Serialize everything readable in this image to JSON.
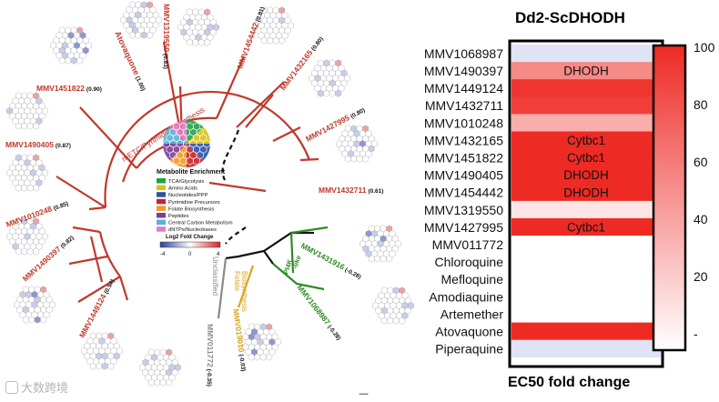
{
  "heatmap": {
    "title": "Dd2-ScDHODH",
    "footer": "EC50 fold change",
    "rows": [
      {
        "compound": "MMV1068987",
        "value": 8,
        "target": ""
      },
      {
        "compound": "MMV1490397",
        "value": 55,
        "target": "DHODH"
      },
      {
        "compound": "MMV1449124",
        "value": 95,
        "target": ""
      },
      {
        "compound": "MMV1432711",
        "value": 90,
        "target": ""
      },
      {
        "compound": "MMV1010248",
        "value": 38,
        "target": ""
      },
      {
        "compound": "MMV1432165",
        "value": 100,
        "target": "Cytbc1"
      },
      {
        "compound": "MMV1451822",
        "value": 100,
        "target": "Cytbc1"
      },
      {
        "compound": "MMV1490405",
        "value": 100,
        "target": "DHODH"
      },
      {
        "compound": "MMV1454442",
        "value": 100,
        "target": "DHODH"
      },
      {
        "compound": "MMV1319550",
        "value": 12,
        "target": ""
      },
      {
        "compound": "MMV1427995",
        "value": 100,
        "target": "Cytbc1"
      },
      {
        "compound": "MMV011772",
        "value": 0,
        "target": ""
      },
      {
        "compound": "Chloroquine",
        "value": 0,
        "target": ""
      },
      {
        "compound": "Mefloquine",
        "value": 0,
        "target": ""
      },
      {
        "compound": "Amodiaquine",
        "value": 0,
        "target": ""
      },
      {
        "compound": "Artemether",
        "value": 0,
        "target": ""
      },
      {
        "compound": "Atovaquone",
        "value": 100,
        "target": ""
      },
      {
        "compound": "Piperaquine",
        "value": 8,
        "target": ""
      }
    ],
    "colorbar": {
      "ticks": [
        "100",
        "80",
        "60",
        "40",
        "20",
        "-"
      ],
      "min": 0,
      "max": 100
    }
  },
  "tree": {
    "clade_mietc": "mETC/Pyrimidine Synthesis",
    "clade_pi4k": "PI4K",
    "clade_pi4k_sub": "-like",
    "clade_folate_1": "Folate",
    "clade_folate_2": "Biosynthesis",
    "clade_unclassified": "Unclassified",
    "leaves": [
      {
        "name": "MMV1319550",
        "score": "(0.83)",
        "group": "red"
      },
      {
        "name": "Atovaquone",
        "score": "(1.00)",
        "group": "red"
      },
      {
        "name": "MMV1454442",
        "score": "(0.81)",
        "group": "red"
      },
      {
        "name": "MMV1432165",
        "score": "(0.80)",
        "group": "red"
      },
      {
        "name": "MMV1451822",
        "score": "(0.90)",
        "group": "red"
      },
      {
        "name": "MMV1427995",
        "score": "(0.80)",
        "group": "red"
      },
      {
        "name": "MMV1490405",
        "score": "(0.87)",
        "group": "red"
      },
      {
        "name": "MMV1432711",
        "score": "(0.61)",
        "group": "red"
      },
      {
        "name": "MMV1010248",
        "score": "(0.85)",
        "group": "red"
      },
      {
        "name": "MMV1490397",
        "score": "(0.82)",
        "group": "red"
      },
      {
        "name": "MMV1449124",
        "score": "(0.54)",
        "group": "red"
      },
      {
        "name": "MMV1431916",
        "score": "(-0.28)",
        "group": "green"
      },
      {
        "name": "MMV1068987",
        "score": "(-0.28)",
        "group": "green"
      },
      {
        "name": "MMV019010",
        "score": "(-0.03)",
        "group": "yellow"
      },
      {
        "name": "MMV011772",
        "score": "(-0.35)",
        "group": "gray"
      }
    ]
  },
  "legend": {
    "title": "Metabolite Enrichment",
    "items": [
      {
        "label": "TCA/Glycolysis",
        "color": "#1fa34a"
      },
      {
        "label": "Amino Acids",
        "color": "#d8c21a"
      },
      {
        "label": "Nucleotides/PPP",
        "color": "#2b53a6"
      },
      {
        "label": "Pyrimidine Precursors",
        "color": "#c6252b"
      },
      {
        "label": "Folate Biosynthesis",
        "color": "#f09a2a"
      },
      {
        "label": "Peptides",
        "color": "#7b3f99"
      },
      {
        "label": "Central Carbon Metabolism",
        "color": "#5ab4d6"
      },
      {
        "label": "dNTPs/Nucleobases",
        "color": "#e27bc2"
      }
    ],
    "scale_title": "Log2 Fold Change",
    "scale_min": "-4",
    "scale_mid": "0",
    "scale_max": "4"
  },
  "scale_mark": "—",
  "watermark": "大数跨境",
  "colors": {
    "red": "#c0392b",
    "green": "#2e8b22",
    "yellow": "#d9a520",
    "gray": "#8a8a8a",
    "heat_max": "#ee2a24"
  }
}
